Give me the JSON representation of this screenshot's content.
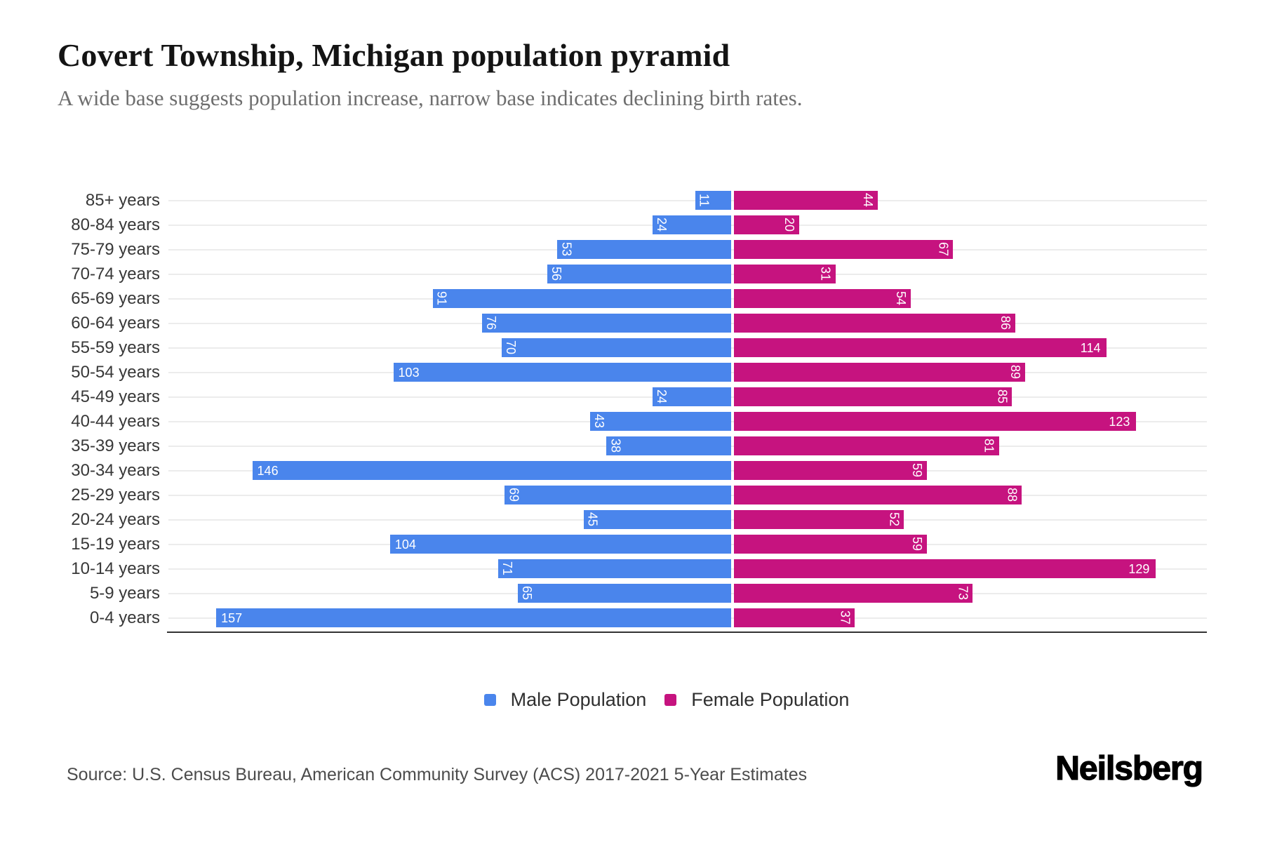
{
  "title": "Covert Township, Michigan population pyramid",
  "subtitle": "A wide base suggests population increase, narrow base indicates declining birth rates.",
  "legend": {
    "male": "Male Population",
    "female": "Female Population"
  },
  "source": "Source: U.S. Census Bureau, American Community Survey (ACS) 2017-2021 5-Year Estimates",
  "logo": "Neilsberg",
  "colors": {
    "male": "#4A85EC",
    "female": "#C6137F",
    "gridline": "#ececec",
    "axis_line": "#333333"
  },
  "chart_data": {
    "type": "bar",
    "variant": "population-pyramid",
    "title": "Covert Township, Michigan population pyramid",
    "subtitle": "A wide base suggests population increase, narrow base indicates declining birth rates.",
    "categories": [
      "85+ years",
      "80-84 years",
      "75-79 years",
      "70-74 years",
      "65-69 years",
      "60-64 years",
      "55-59 years",
      "50-54 years",
      "45-49 years",
      "40-44 years",
      "35-39 years",
      "30-34 years",
      "25-29 years",
      "20-24 years",
      "15-19 years",
      "10-14 years",
      "5-9 years",
      "0-4 years"
    ],
    "series": [
      {
        "name": "Male Population",
        "side": "left",
        "color": "#4A85EC",
        "values": [
          11,
          24,
          53,
          56,
          91,
          76,
          70,
          103,
          24,
          43,
          38,
          146,
          69,
          45,
          104,
          71,
          65,
          157
        ]
      },
      {
        "name": "Female Population",
        "side": "right",
        "color": "#C6137F",
        "values": [
          44,
          20,
          67,
          31,
          54,
          86,
          114,
          89,
          85,
          123,
          81,
          59,
          88,
          52,
          59,
          129,
          73,
          37
        ]
      }
    ],
    "xmax_male": 172,
    "xmax_female": 145,
    "grid": true,
    "legend_position": "bottom",
    "value_labels": "white, inside outer end of bar; 2-digit values rotated 90deg, 3-digit horizontal"
  }
}
